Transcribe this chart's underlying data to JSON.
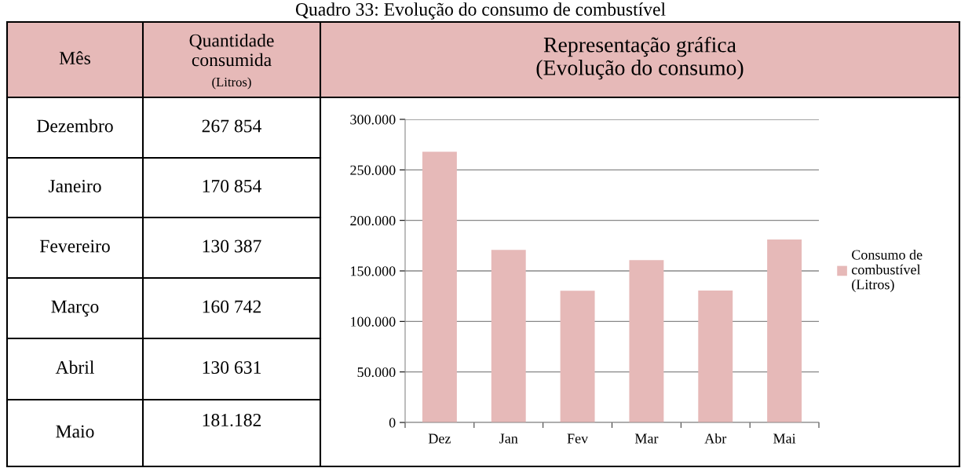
{
  "chart_data": {
    "type": "bar",
    "title": "Quadro 33: Evolução do consumo de combustível",
    "categories": [
      "Dez",
      "Jan",
      "Fev",
      "Mar",
      "Abr",
      "Mai"
    ],
    "series": [
      {
        "name": "Consumo de\ncombustível\n(Litros)",
        "color": "#e6b9b8",
        "values": [
          267854,
          170854,
          130387,
          160742,
          130631,
          181182
        ]
      }
    ],
    "ylim": [
      0,
      300000
    ],
    "yticks": [
      {
        "value": 0,
        "label": "0"
      },
      {
        "value": 50000,
        "label": "50.000"
      },
      {
        "value": 100000,
        "label": "100.000"
      },
      {
        "value": 150000,
        "label": "150.000"
      },
      {
        "value": 200000,
        "label": "200.000"
      },
      {
        "value": 250000,
        "label": "250.000"
      },
      {
        "value": 300000,
        "label": "300.000"
      }
    ],
    "grid": "y",
    "legend": "right",
    "annotations": [
      "Mês",
      "Quantidade\nconsumida",
      "(Litros)",
      "Representação gráfica\n(Evolução do consumo)",
      "Dezembro",
      "Janeiro",
      "Fevereiro",
      "Março",
      "Abril",
      "Maio",
      "267 854",
      "170 854",
      "130 387",
      "160 742",
      "130 631",
      "181.182"
    ]
  }
}
